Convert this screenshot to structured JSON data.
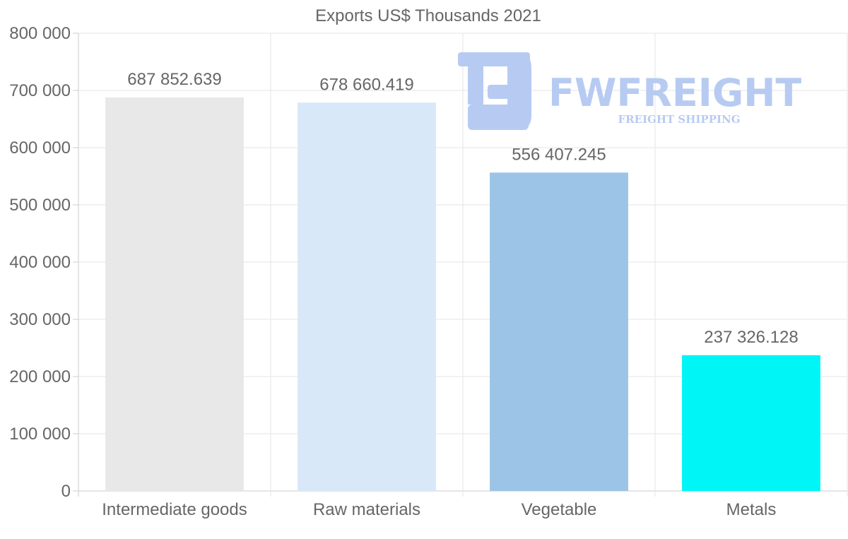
{
  "chart_data": {
    "type": "bar",
    "title": "Exports US$ Thousands 2021",
    "categories": [
      "Intermediate goods",
      "Raw materials",
      "Vegetable",
      "Metals"
    ],
    "values": [
      687852.639,
      678660.419,
      556407.245,
      237326.128
    ],
    "data_labels": [
      "687 852.639",
      "678 660.419",
      "556 407.245",
      "237 326.128"
    ],
    "colors": [
      "#e8e8e8",
      "#d8e8f8",
      "#9cc4e6",
      "#00f6f6"
    ],
    "ylim": [
      0,
      800000
    ],
    "yticks": [
      0,
      100000,
      200000,
      300000,
      400000,
      500000,
      600000,
      700000,
      800000
    ],
    "ytick_labels": [
      "0",
      "100 000",
      "200 000",
      "300 000",
      "400 000",
      "500 000",
      "600 000",
      "700 000",
      "800 000"
    ],
    "xlabel": "",
    "ylabel": "",
    "grid": true,
    "legend": "none"
  },
  "watermark": {
    "brand": "FWFREIGHT",
    "tagline": "FREIGHT SHIPPING",
    "color": "#b4c9f2"
  }
}
